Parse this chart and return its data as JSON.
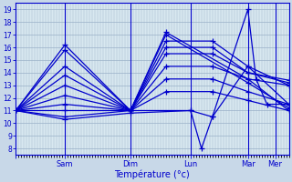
{
  "xlabel": "Température (°c)",
  "bg_color": "#c8d8e8",
  "plot_bg_color": "#d8e8f0",
  "line_color": "#0000cc",
  "grid_color": "#9ab0c8",
  "marker": "+",
  "markersize": 4,
  "linewidth": 0.9,
  "ylim": [
    7.5,
    19.5
  ],
  "yticks": [
    8,
    9,
    10,
    11,
    12,
    13,
    14,
    15,
    16,
    17,
    18,
    19
  ],
  "xlim": [
    0,
    1.0
  ],
  "day_positions": [
    0.0,
    0.18,
    0.42,
    0.64,
    0.85,
    0.95
  ],
  "day_labels": [
    "",
    "Sam",
    "Dim",
    "Lun",
    "Mar",
    "Mer"
  ],
  "series": [
    {
      "x": [
        0.0,
        0.18,
        0.42,
        0.55,
        0.85,
        1.0
      ],
      "y": [
        11.0,
        16.2,
        11.0,
        17.2,
        13.5,
        11.0
      ]
    },
    {
      "x": [
        0.0,
        0.18,
        0.42,
        0.55,
        0.85,
        1.0
      ],
      "y": [
        11.0,
        15.8,
        11.0,
        17.0,
        13.2,
        11.2
      ]
    },
    {
      "x": [
        0.0,
        0.18,
        0.42,
        0.55,
        0.72,
        0.85,
        1.0
      ],
      "y": [
        11.0,
        14.5,
        11.0,
        16.5,
        16.5,
        14.5,
        13.0
      ]
    },
    {
      "x": [
        0.0,
        0.18,
        0.42,
        0.55,
        0.72,
        0.85,
        1.0
      ],
      "y": [
        11.0,
        13.8,
        11.0,
        16.0,
        16.0,
        14.0,
        13.2
      ]
    },
    {
      "x": [
        0.0,
        0.18,
        0.42,
        0.55,
        0.72,
        0.85,
        1.0
      ],
      "y": [
        11.0,
        13.0,
        11.0,
        15.5,
        15.5,
        14.0,
        13.4
      ]
    },
    {
      "x": [
        0.0,
        0.18,
        0.42,
        0.55,
        0.72,
        0.85,
        1.0
      ],
      "y": [
        11.0,
        12.2,
        11.0,
        14.5,
        14.5,
        13.5,
        13.0
      ]
    },
    {
      "x": [
        0.0,
        0.18,
        0.42,
        0.55,
        0.72,
        0.85,
        1.0
      ],
      "y": [
        11.0,
        11.5,
        11.0,
        13.5,
        13.5,
        12.5,
        11.5
      ]
    },
    {
      "x": [
        0.0,
        0.18,
        0.42,
        0.55,
        0.72,
        0.85,
        1.0
      ],
      "y": [
        11.0,
        11.0,
        11.0,
        12.5,
        12.5,
        11.8,
        11.0
      ]
    },
    {
      "x": [
        0.0,
        0.18,
        0.42,
        0.64,
        0.68,
        0.72,
        0.85,
        0.88,
        0.92,
        1.0
      ],
      "y": [
        11.0,
        10.5,
        11.0,
        11.0,
        8.0,
        10.5,
        19.0,
        13.5,
        11.5,
        11.5
      ]
    },
    {
      "x": [
        0.0,
        0.18,
        0.42,
        0.64,
        0.72,
        0.85,
        1.0
      ],
      "y": [
        11.0,
        10.3,
        10.8,
        11.0,
        10.5,
        14.5,
        11.5
      ]
    }
  ]
}
